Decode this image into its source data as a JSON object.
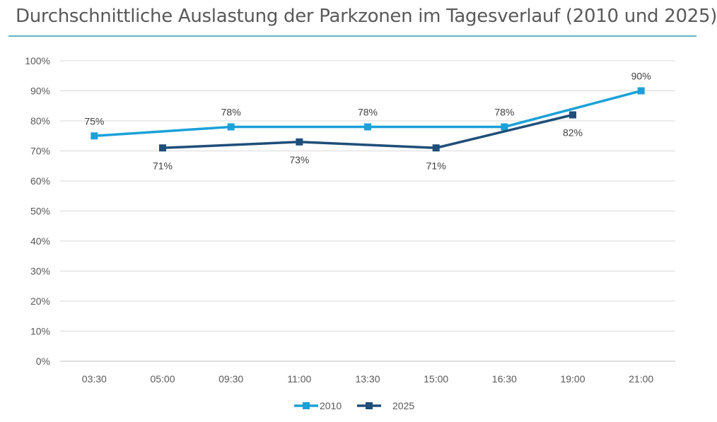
{
  "title": "Durchschnittliche Auslastung der Parkzonen im Tagesverlauf (2010 und 2025)",
  "chart_data": {
    "type": "line",
    "title": "Durchschnittliche Auslastung der Parkzonen im Tagesverlauf (2010 und 2025)",
    "categories": [
      "03:30",
      "05:00",
      "09:30",
      "11:00",
      "13:30",
      "15:00",
      "16:30",
      "19:00",
      "21:00"
    ],
    "y_ticks": [
      "0%",
      "10%",
      "20%",
      "30%",
      "40%",
      "50%",
      "60%",
      "70%",
      "80%",
      "90%",
      "100%"
    ],
    "ylim": [
      0,
      100
    ],
    "grid": true,
    "legend_position": "bottom",
    "series": [
      {
        "name": "2010",
        "color": "#1ba1d8",
        "points": [
          {
            "category": "03:30",
            "value": 75,
            "label": "75%"
          },
          {
            "category": "09:30",
            "value": 78,
            "label": "78%"
          },
          {
            "category": "13:30",
            "value": 78,
            "label": "78%"
          },
          {
            "category": "16:30",
            "value": 78,
            "label": "78%"
          },
          {
            "category": "21:00",
            "value": 90,
            "label": "90%"
          }
        ]
      },
      {
        "name": "2025",
        "color": "#1f4e79",
        "points": [
          {
            "category": "05:00",
            "value": 71,
            "label": "71%"
          },
          {
            "category": "11:00",
            "value": 73,
            "label": "73%"
          },
          {
            "category": "15:00",
            "value": 71,
            "label": "71%"
          },
          {
            "category": "19:00",
            "value": 82,
            "label": "82%"
          }
        ]
      }
    ]
  }
}
